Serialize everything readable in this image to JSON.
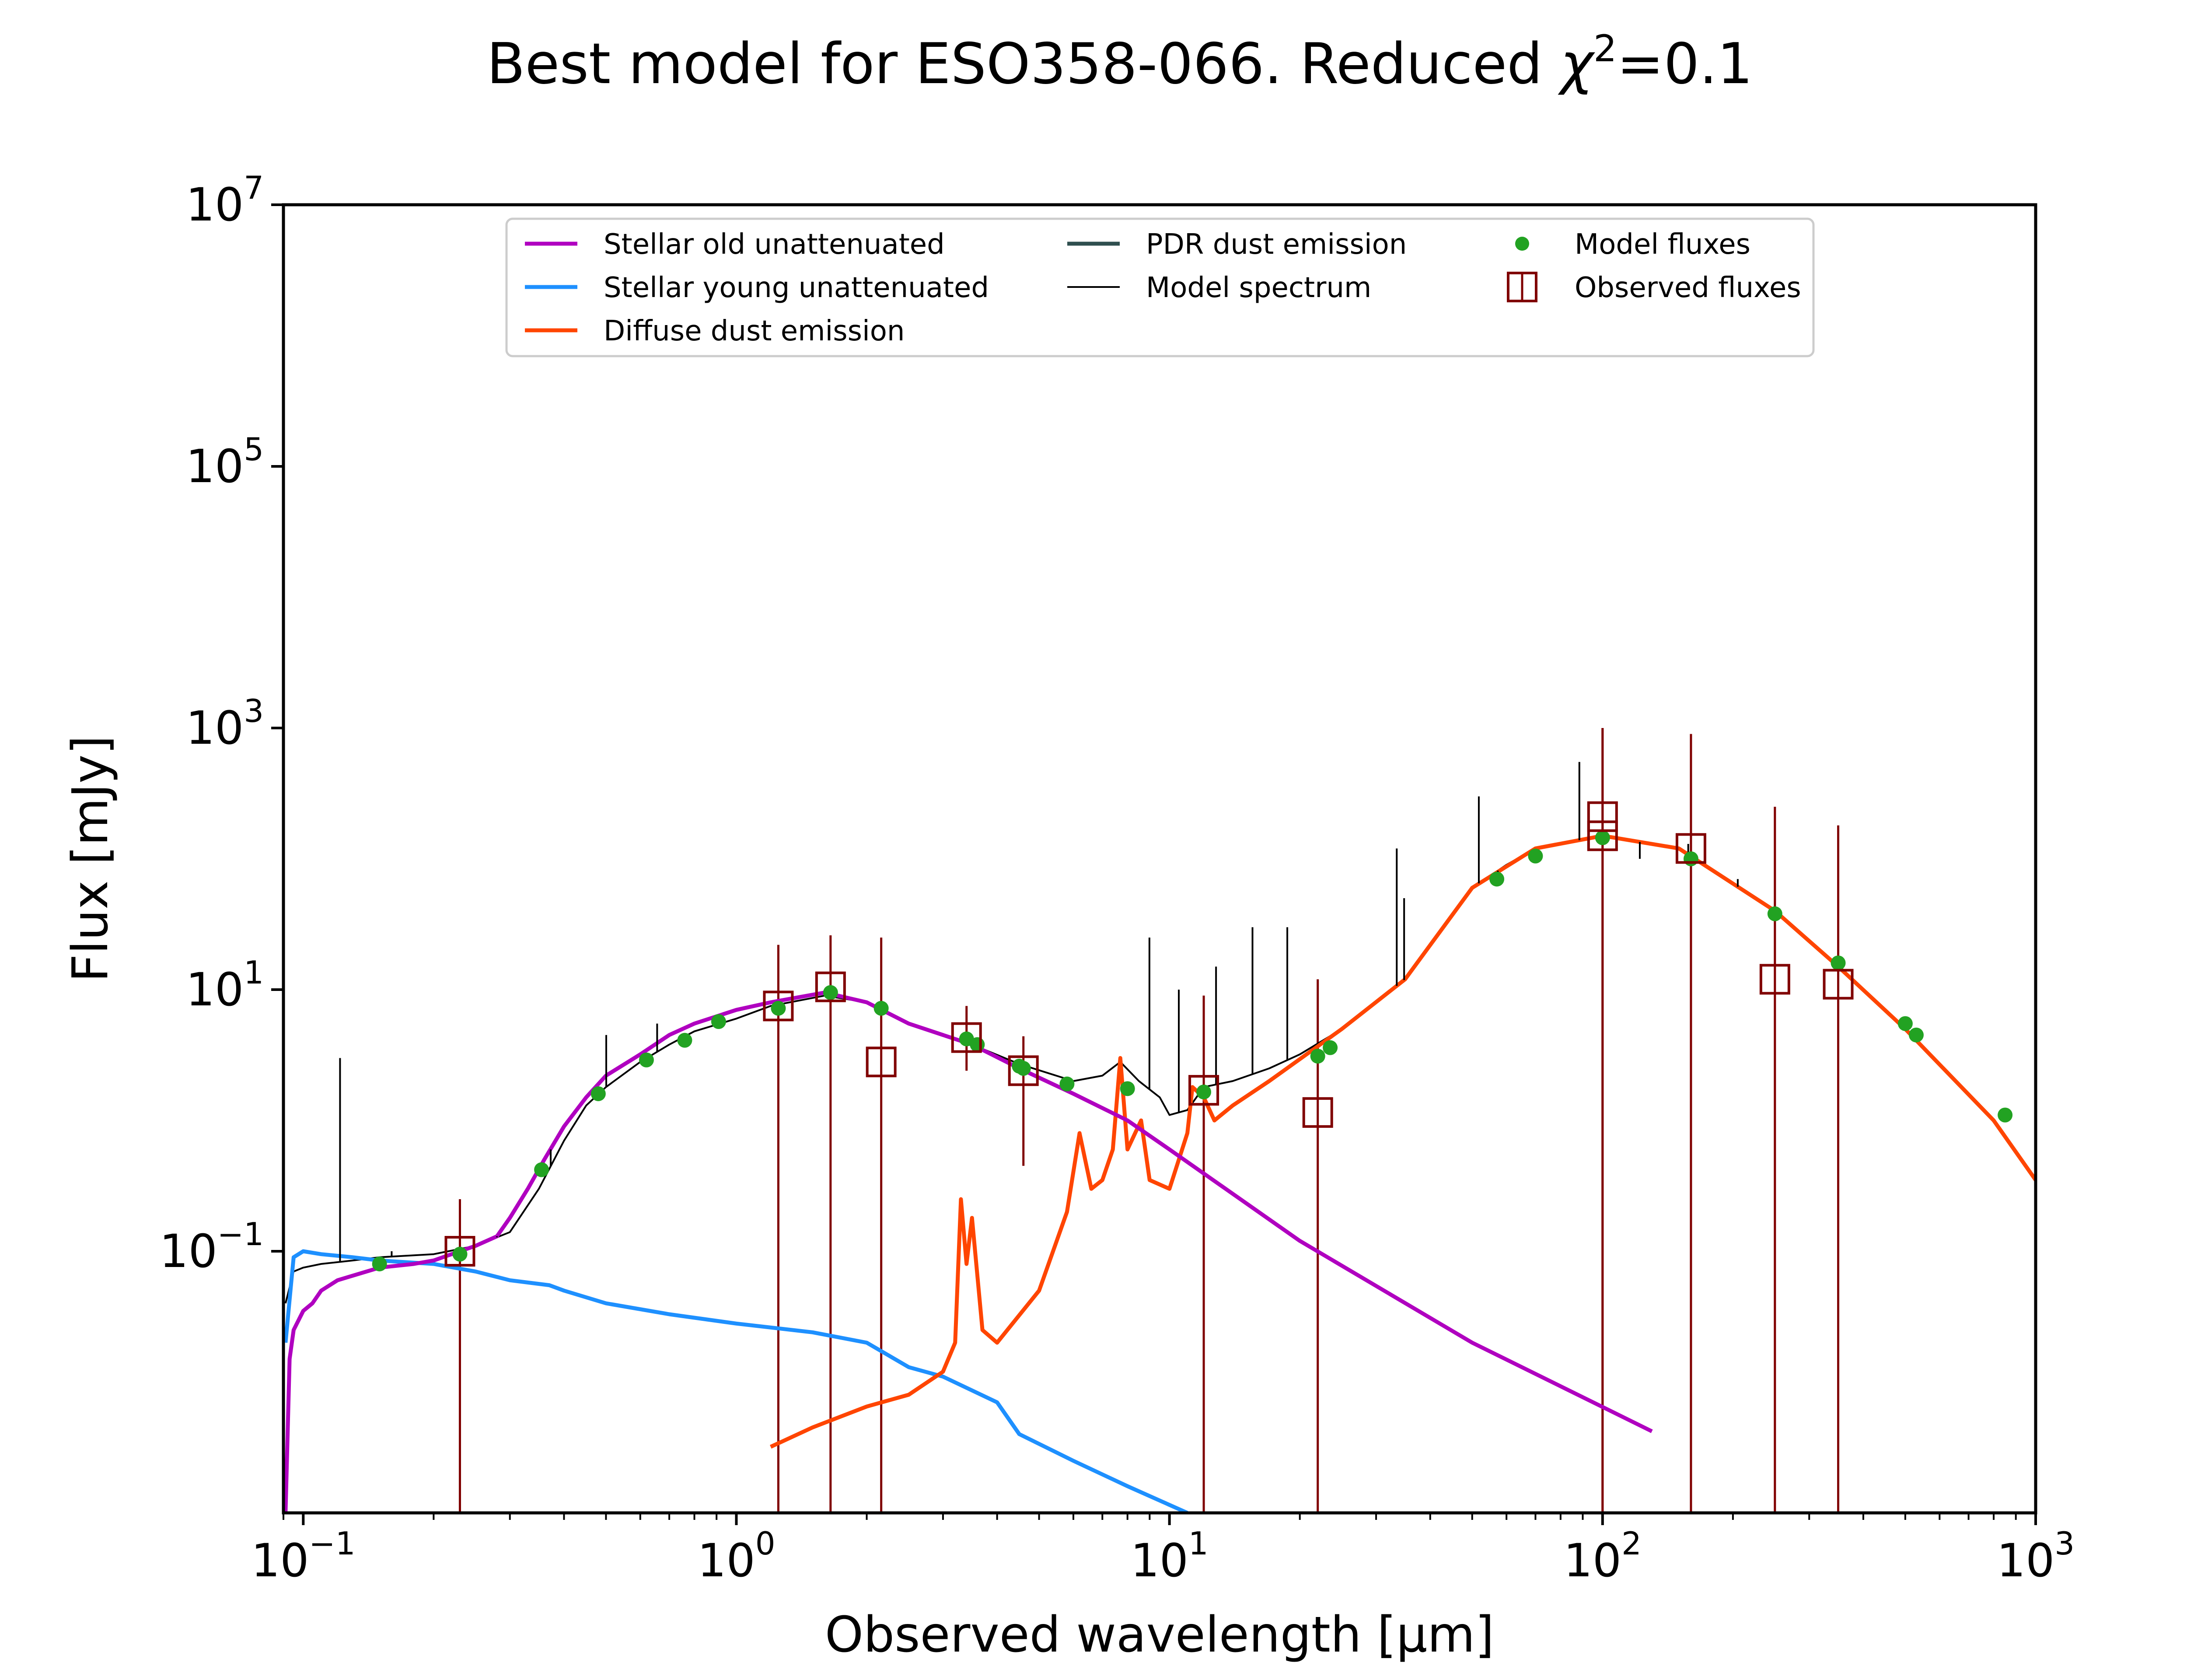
{
  "chart_data": {
    "type": "line",
    "title_main": "Best model for ESO358-066. Reduced ",
    "title_chi": "χ",
    "title_sup": "2",
    "title_value": "=0.1",
    "xlabel": "Observed wavelength [μm]",
    "ylabel": "Flux [mJy]",
    "xscale": "log",
    "yscale": "log",
    "xlim": [
      0.09,
      1000
    ],
    "ylim": [
      0.001,
      10000000
    ],
    "x_ticks": [
      {
        "value": 0.1,
        "base": "10",
        "exp": "−1"
      },
      {
        "value": 1,
        "base": "10",
        "exp": "0"
      },
      {
        "value": 10,
        "base": "10",
        "exp": "1"
      },
      {
        "value": 100,
        "base": "10",
        "exp": "2"
      },
      {
        "value": 1000,
        "base": "10",
        "exp": "3"
      }
    ],
    "y_ticks": [
      {
        "value": 0.1,
        "base": "10",
        "exp": "−1"
      },
      {
        "value": 10,
        "base": "10",
        "exp": "1"
      },
      {
        "value": 1000,
        "base": "10",
        "exp": "3"
      },
      {
        "value": 100000,
        "base": "10",
        "exp": "5"
      },
      {
        "value": 10000000,
        "base": "10",
        "exp": "7"
      }
    ],
    "legend_position": "top-center",
    "legend": [
      {
        "label": "Stellar old unattenuated",
        "kind": "line",
        "color": "#b000c0"
      },
      {
        "label": "Stellar young unattenuated",
        "kind": "line",
        "color": "#1e90ff"
      },
      {
        "label": "Diffuse dust emission",
        "kind": "line",
        "color": "#ff4500"
      },
      {
        "label": "PDR dust emission",
        "kind": "line",
        "color": "#2f4f4f"
      },
      {
        "label": "Model spectrum",
        "kind": "thinline",
        "color": "#000000"
      },
      {
        "label": "Model fluxes",
        "kind": "dot",
        "color": "#22a222"
      },
      {
        "label": "Observed fluxes",
        "kind": "square",
        "color": "#800000"
      }
    ],
    "series": [
      {
        "name": "Stellar old unattenuated",
        "color": "#b000c0",
        "x": [
          0.091,
          0.093,
          0.095,
          0.1,
          0.105,
          0.11,
          0.12,
          0.13,
          0.15,
          0.18,
          0.2,
          0.23,
          0.25,
          0.28,
          0.3,
          0.33,
          0.36,
          0.4,
          0.45,
          0.5,
          0.6,
          0.7,
          0.8,
          1.0,
          1.2,
          1.6,
          2.0,
          2.5,
          3.0,
          3.5,
          4.5,
          6,
          8,
          10,
          20,
          50,
          130
        ],
        "y": [
          0.001,
          0.015,
          0.025,
          0.035,
          0.04,
          0.05,
          0.06,
          0.065,
          0.075,
          0.08,
          0.085,
          0.1,
          0.11,
          0.13,
          0.18,
          0.3,
          0.5,
          0.9,
          1.5,
          2.2,
          3.2,
          4.5,
          5.5,
          7,
          8,
          9.5,
          8,
          5.5,
          4.5,
          3.8,
          2.5,
          1.6,
          1.0,
          0.6,
          0.12,
          0.02,
          0.0042
        ]
      },
      {
        "name": "Stellar young unattenuated",
        "color": "#1e90ff",
        "x": [
          0.091,
          0.095,
          0.1,
          0.11,
          0.13,
          0.15,
          0.2,
          0.25,
          0.3,
          0.37,
          0.4,
          0.5,
          0.7,
          1.0,
          1.5,
          2.0,
          2.5,
          3.0,
          4.0,
          4.5,
          6.0,
          8.0,
          11.0
        ],
        "y": [
          0.02,
          0.09,
          0.1,
          0.095,
          0.09,
          0.085,
          0.08,
          0.07,
          0.06,
          0.055,
          0.05,
          0.04,
          0.033,
          0.028,
          0.024,
          0.02,
          0.013,
          0.011,
          0.007,
          0.004,
          0.0025,
          0.0016,
          0.001
        ]
      },
      {
        "name": "Diffuse dust emission",
        "color": "#ff4500",
        "x": [
          1.2,
          1.5,
          2.0,
          2.5,
          3.0,
          3.2,
          3.3,
          3.4,
          3.5,
          3.7,
          4.0,
          5.0,
          5.8,
          6.2,
          6.6,
          7.0,
          7.4,
          7.7,
          8.0,
          8.6,
          9.0,
          10.0,
          11.0,
          11.3,
          12.0,
          12.7,
          14.0,
          17.0,
          25.0,
          35.0,
          50.0,
          70.0,
          100.0,
          150.0,
          250.0,
          350.0,
          500.0,
          800.0,
          1000.0
        ],
        "y": [
          0.0032,
          0.0045,
          0.0065,
          0.008,
          0.012,
          0.02,
          0.25,
          0.08,
          0.18,
          0.025,
          0.02,
          0.05,
          0.2,
          0.8,
          0.3,
          0.35,
          0.6,
          3.0,
          0.6,
          1.0,
          0.35,
          0.3,
          0.8,
          1.8,
          1.5,
          1.0,
          1.3,
          2.0,
          5.0,
          12.0,
          60.0,
          120.0,
          150.0,
          120.0,
          40.0,
          15.0,
          5.0,
          1.0,
          0.35
        ]
      },
      {
        "name": "Model spectrum",
        "color": "#000000",
        "x": [
          0.091,
          0.095,
          0.1,
          0.11,
          0.13,
          0.15,
          0.2,
          0.25,
          0.3,
          0.35,
          0.4,
          0.45,
          0.5,
          0.6,
          0.7,
          0.8,
          1.0,
          1.2,
          1.6,
          2.0,
          2.5,
          3.0,
          3.5,
          4.5,
          6,
          7,
          7.7,
          8.5,
          9.5,
          10,
          11,
          12,
          14,
          17,
          20,
          25,
          35,
          50,
          60,
          70,
          100,
          150,
          250,
          350,
          500,
          800,
          1000
        ],
        "y": [
          0.04,
          0.07,
          0.075,
          0.08,
          0.085,
          0.09,
          0.095,
          0.11,
          0.14,
          0.3,
          0.7,
          1.3,
          1.8,
          2.8,
          3.8,
          4.8,
          6,
          7.5,
          9,
          8,
          5.5,
          4.5,
          3.8,
          2.7,
          2.0,
          2.2,
          2.8,
          2.0,
          1.5,
          1.1,
          1.2,
          1.8,
          2.0,
          2.5,
          3.2,
          5,
          12,
          60,
          90,
          120,
          150,
          120,
          40,
          15,
          5,
          1,
          0.35
        ]
      }
    ],
    "spikes": [
      {
        "x": 0.1216,
        "y": 3.0
      },
      {
        "x": 0.16,
        "y": 0.1
      },
      {
        "x": 0.28,
        "y": 0.13
      },
      {
        "x": 0.3727,
        "y": 0.6
      },
      {
        "x": 0.5007,
        "y": 4.5
      },
      {
        "x": 0.6563,
        "y": 5.5
      },
      {
        "x": 8.99,
        "y": 25
      },
      {
        "x": 10.51,
        "y": 10
      },
      {
        "x": 12.81,
        "y": 15
      },
      {
        "x": 15.55,
        "y": 30
      },
      {
        "x": 18.71,
        "y": 30
      },
      {
        "x": 33.48,
        "y": 120
      },
      {
        "x": 34.82,
        "y": 50
      },
      {
        "x": 51.8,
        "y": 300
      },
      {
        "x": 57.3,
        "y": 70
      },
      {
        "x": 88.4,
        "y": 550
      },
      {
        "x": 121.9,
        "y": 100
      },
      {
        "x": 157.7,
        "y": 130
      },
      {
        "x": 205.2,
        "y": 70
      }
    ],
    "model_fluxes": {
      "x": [
        0.15,
        0.23,
        0.355,
        0.48,
        0.62,
        0.76,
        0.91,
        1.25,
        1.65,
        2.16,
        3.4,
        3.6,
        4.5,
        4.6,
        5.8,
        8.0,
        12.0,
        22.0,
        23.5,
        57.0,
        70.0,
        100.0,
        160.0,
        250.0,
        350.0,
        500.0,
        530.0,
        850.0
      ],
      "y": [
        0.08,
        0.095,
        0.42,
        1.6,
        2.9,
        4.1,
        5.7,
        7.2,
        9.5,
        7.2,
        4.2,
        3.8,
        2.6,
        2.5,
        1.9,
        1.75,
        1.65,
        3.1,
        3.6,
        70.0,
        105.0,
        145.0,
        100.0,
        38.0,
        16.0,
        5.5,
        4.5,
        1.1
      ]
    },
    "observed_fluxes": [
      {
        "x": 0.23,
        "y": 0.1,
        "err_low": 0.001,
        "err_high": 0.25
      },
      {
        "x": 1.25,
        "y": 7.5,
        "err_low": 0.001,
        "err_high": 22
      },
      {
        "x": 1.65,
        "y": 10.5,
        "err_low": 0.001,
        "err_high": 26
      },
      {
        "x": 2.16,
        "y": 2.8,
        "err_low": 0.001,
        "err_high": 25
      },
      {
        "x": 3.4,
        "y": 4.3,
        "err_low": 2.4,
        "err_high": 7.5
      },
      {
        "x": 4.6,
        "y": 2.4,
        "err_low": 0.45,
        "err_high": 4.4
      },
      {
        "x": 12.0,
        "y": 1.7,
        "err_low": 0.001,
        "err_high": 9
      },
      {
        "x": 22.0,
        "y": 1.15,
        "err_low": 0.001,
        "err_high": 12
      },
      {
        "x": 100.0,
        "y": 210,
        "err_low": 0.001,
        "err_high": 1000
      },
      {
        "x": 100.0,
        "y": 150,
        "err_low": 0.001,
        "err_high": 1000
      },
      {
        "x": 160.0,
        "y": 120,
        "err_low": 0.001,
        "err_high": 900
      },
      {
        "x": 250.0,
        "y": 12,
        "err_low": 0.001,
        "err_high": 250
      },
      {
        "x": 350.0,
        "y": 11,
        "err_low": 0.001,
        "err_high": 180
      }
    ]
  }
}
